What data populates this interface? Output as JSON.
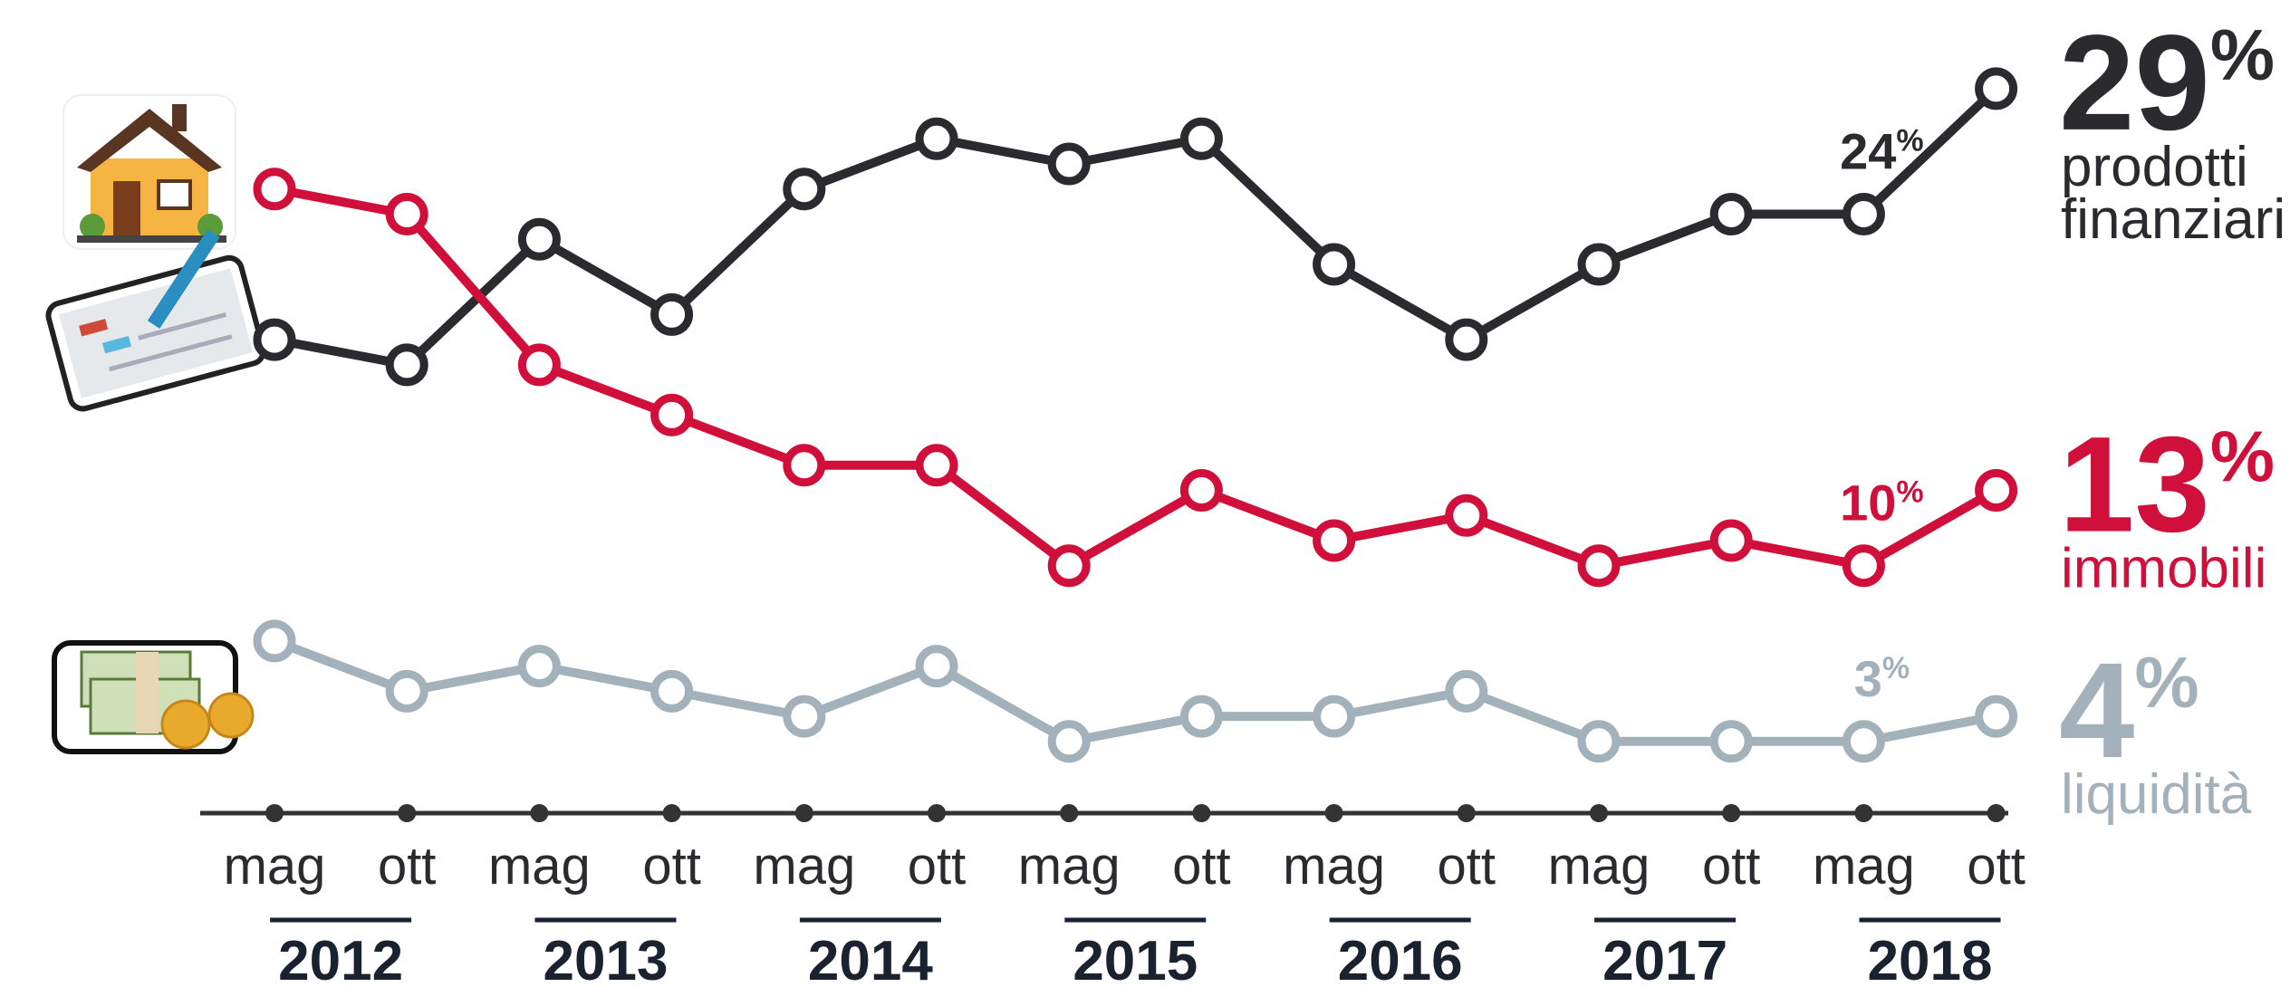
{
  "chart_data": {
    "type": "line",
    "categories": [
      "mag",
      "ott",
      "mag",
      "ott",
      "mag",
      "ott",
      "mag",
      "ott",
      "mag",
      "ott",
      "mag",
      "ott",
      "mag",
      "ott"
    ],
    "years": [
      "2012",
      "2013",
      "2014",
      "2015",
      "2016",
      "2017",
      "2018"
    ],
    "series": [
      {
        "name": "prodotti finanziari",
        "color": "#2b2a2e",
        "values": [
          19,
          18,
          23,
          20,
          25,
          27,
          26,
          27,
          22,
          19,
          22,
          24,
          24,
          29
        ],
        "value_labels": [
          null,
          null,
          null,
          null,
          null,
          null,
          null,
          null,
          null,
          null,
          null,
          null,
          "24%",
          "29%"
        ]
      },
      {
        "name": "immobili",
        "color": "#d0103a",
        "values": [
          25,
          24,
          18,
          16,
          14,
          14,
          10,
          13,
          11,
          12,
          10,
          11,
          10,
          13
        ],
        "value_labels": [
          null,
          null,
          null,
          null,
          null,
          null,
          null,
          null,
          null,
          null,
          null,
          null,
          "10%",
          "13%"
        ]
      },
      {
        "name": "liquidità",
        "color": "#a3b1bb",
        "values": [
          7,
          5,
          6,
          5,
          4,
          6,
          3,
          4,
          4,
          5,
          3,
          3,
          3,
          4
        ],
        "value_labels": [
          null,
          null,
          null,
          null,
          null,
          null,
          null,
          null,
          null,
          null,
          null,
          null,
          "3%",
          "4%"
        ]
      }
    ]
  }
}
